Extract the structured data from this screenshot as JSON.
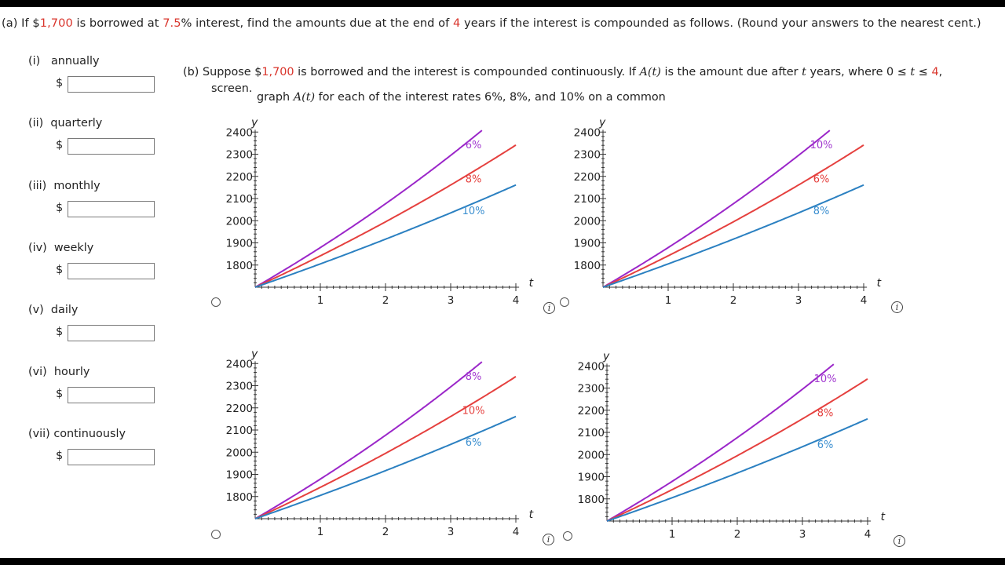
{
  "part_a": {
    "question_segments": [
      {
        "text": "(a)  If $",
        "color": null
      },
      {
        "text": "1,700",
        "color": "#d9342b"
      },
      {
        "text": " is borrowed at ",
        "color": null
      },
      {
        "text": "7.5",
        "color": "#d9342b"
      },
      {
        "text": "% interest, find the amounts due at the end of ",
        "color": null
      },
      {
        "text": "4",
        "color": "#d9342b"
      },
      {
        "text": " years if the interest is compounded as follows. (Round your answers to the nearest cent.)",
        "color": null
      }
    ],
    "dollar_sign": "$",
    "items": [
      {
        "label": "(i)   annually",
        "value": ""
      },
      {
        "label": "(ii)  quarterly",
        "value": ""
      },
      {
        "label": "(iii)  monthly",
        "value": ""
      },
      {
        "label": "(iv)  weekly",
        "value": ""
      },
      {
        "label": "(v)  daily",
        "value": ""
      },
      {
        "label": "(vi)  hourly",
        "value": ""
      },
      {
        "label": "(vii) continuously",
        "value": ""
      }
    ]
  },
  "part_b": {
    "line1_segments": [
      {
        "text": "(b)  Suppose $",
        "color": null
      },
      {
        "text": "1,700",
        "color": "#d9342b"
      },
      {
        "text": " is borrowed and the interest is compounded continuously. If ",
        "color": null
      },
      {
        "text": "A(t)",
        "italic": true
      },
      {
        "text": " is the amount due after ",
        "color": null
      },
      {
        "text": "t",
        "italic": true
      },
      {
        "text": " years, where 0 ≤ ",
        "color": null
      },
      {
        "text": "t",
        "italic": true
      },
      {
        "text": " ≤ ",
        "color": null
      },
      {
        "text": "4",
        "color": "#d9342b"
      },
      {
        "text": ",",
        "color": null
      }
    ],
    "line2": "screen.",
    "line3_segments": [
      {
        "text": "graph ",
        "color": null
      },
      {
        "text": "A(t)",
        "italic": true
      },
      {
        "text": " for each of the interest rates 6%, 8%, and 10% on a common",
        "color": null
      }
    ]
  },
  "info_symbol": "i",
  "chart_data": [
    {
      "type": "line",
      "xlabel": "t",
      "ylabel": "y",
      "xlim": [
        0,
        4.1
      ],
      "ylim": [
        1700,
        2420
      ],
      "xticks": [
        "1",
        "2",
        "3",
        "4"
      ],
      "yticks": [
        "1800",
        "1900",
        "2000",
        "2100",
        "2200",
        "2300",
        "2400"
      ],
      "series": [
        {
          "label": "6%",
          "color": "#9b27c9",
          "rate": 0.1,
          "label_color": "#a33bd0"
        },
        {
          "label": "8%",
          "color": "#e5403e",
          "rate": 0.08,
          "label_color": "#e5403e"
        },
        {
          "label": "10%",
          "color": "#2b80c1",
          "rate": 0.06,
          "label_color": "#3b8fd0"
        }
      ]
    },
    {
      "type": "line",
      "xlabel": "t",
      "ylabel": "y",
      "xlim": [
        0,
        4.1
      ],
      "ylim": [
        1700,
        2420
      ],
      "xticks": [
        "1",
        "2",
        "3",
        "4"
      ],
      "yticks": [
        "1800",
        "1900",
        "2000",
        "2100",
        "2200",
        "2300",
        "2400"
      ],
      "series": [
        {
          "label": "10%",
          "color": "#9b27c9",
          "rate": 0.1,
          "label_color": "#a33bd0"
        },
        {
          "label": "6%",
          "color": "#e5403e",
          "rate": 0.08,
          "label_color": "#e5403e"
        },
        {
          "label": "8%",
          "color": "#2b80c1",
          "rate": 0.06,
          "label_color": "#3b8fd0"
        }
      ]
    },
    {
      "type": "line",
      "xlabel": "t",
      "ylabel": "y",
      "xlim": [
        0,
        4.1
      ],
      "ylim": [
        1700,
        2420
      ],
      "xticks": [
        "1",
        "2",
        "3",
        "4"
      ],
      "yticks": [
        "1800",
        "1900",
        "2000",
        "2100",
        "2200",
        "2300",
        "2400"
      ],
      "series": [
        {
          "label": "8%",
          "color": "#9b27c9",
          "rate": 0.1,
          "label_color": "#a33bd0"
        },
        {
          "label": "10%",
          "color": "#e5403e",
          "rate": 0.08,
          "label_color": "#e5403e"
        },
        {
          "label": "6%",
          "color": "#2b80c1",
          "rate": 0.06,
          "label_color": "#3b8fd0"
        }
      ]
    },
    {
      "type": "line",
      "xlabel": "t",
      "ylabel": "y",
      "xlim": [
        0,
        4.1
      ],
      "ylim": [
        1700,
        2420
      ],
      "xticks": [
        "1",
        "2",
        "3",
        "4"
      ],
      "yticks": [
        "1800",
        "1900",
        "2000",
        "2100",
        "2200",
        "2300",
        "2400"
      ],
      "series": [
        {
          "label": "10%",
          "color": "#9b27c9",
          "rate": 0.1,
          "label_color": "#a33bd0"
        },
        {
          "label": "8%",
          "color": "#e5403e",
          "rate": 0.08,
          "label_color": "#e5403e"
        },
        {
          "label": "6%",
          "color": "#2b80c1",
          "rate": 0.06,
          "label_color": "#3b8fd0"
        }
      ]
    }
  ]
}
